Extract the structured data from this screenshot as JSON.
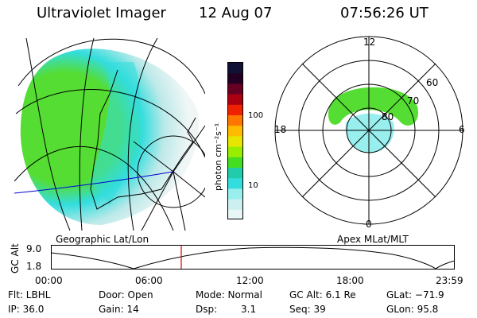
{
  "header": {
    "instrument": "Ultraviolet Imager",
    "date": "12 Aug 07",
    "time": "07:56:26 UT"
  },
  "geo_panel": {
    "label": "Geographic Lat/Lon"
  },
  "polar_panel": {
    "label": "Apex MLat/MLT",
    "mlt_labels": {
      "top": "12",
      "left": "18",
      "right": "6",
      "bottom": "0"
    },
    "mlat_labels": [
      "60",
      "70",
      "80"
    ]
  },
  "colorbar": {
    "unit_label": "photon cm⁻²s⁻¹",
    "ticks": [
      "100",
      "10"
    ],
    "colors": [
      "#111133",
      "#220022",
      "#660022",
      "#aa0011",
      "#ee2200",
      "#ff7700",
      "#ffbb00",
      "#e6e600",
      "#99ee00",
      "#44dd22",
      "#22ccaa",
      "#33dddd",
      "#99eeee",
      "#ccf0f0",
      "#e8f6f6"
    ]
  },
  "altitude_plot": {
    "ylabel": "GC Alt",
    "yticks": [
      "9.0",
      "1.8"
    ],
    "xticks": [
      "00:00",
      "06:00",
      "12:00",
      "18:00",
      "23:59"
    ]
  },
  "info": {
    "row1": {
      "flt": "Flt: LBHL",
      "door": "Door: Open",
      "mode": "Mode: Normal",
      "gcalt": "GC Alt: 6.1 Re",
      "glat": "GLat: −71.9"
    },
    "row2": {
      "ip": "IP: 36.0",
      "gain": "Gain: 14",
      "dsp_label": "Dsp:",
      "dsp_value": "3.1",
      "seq": "Seq: 39",
      "glon": "GLon:  95.8"
    }
  },
  "colors": {
    "auroral_green": "#55dd33",
    "auroral_cyan": "#33dddd",
    "marker_red": "#dd0000",
    "track_blue": "#0000cc"
  }
}
